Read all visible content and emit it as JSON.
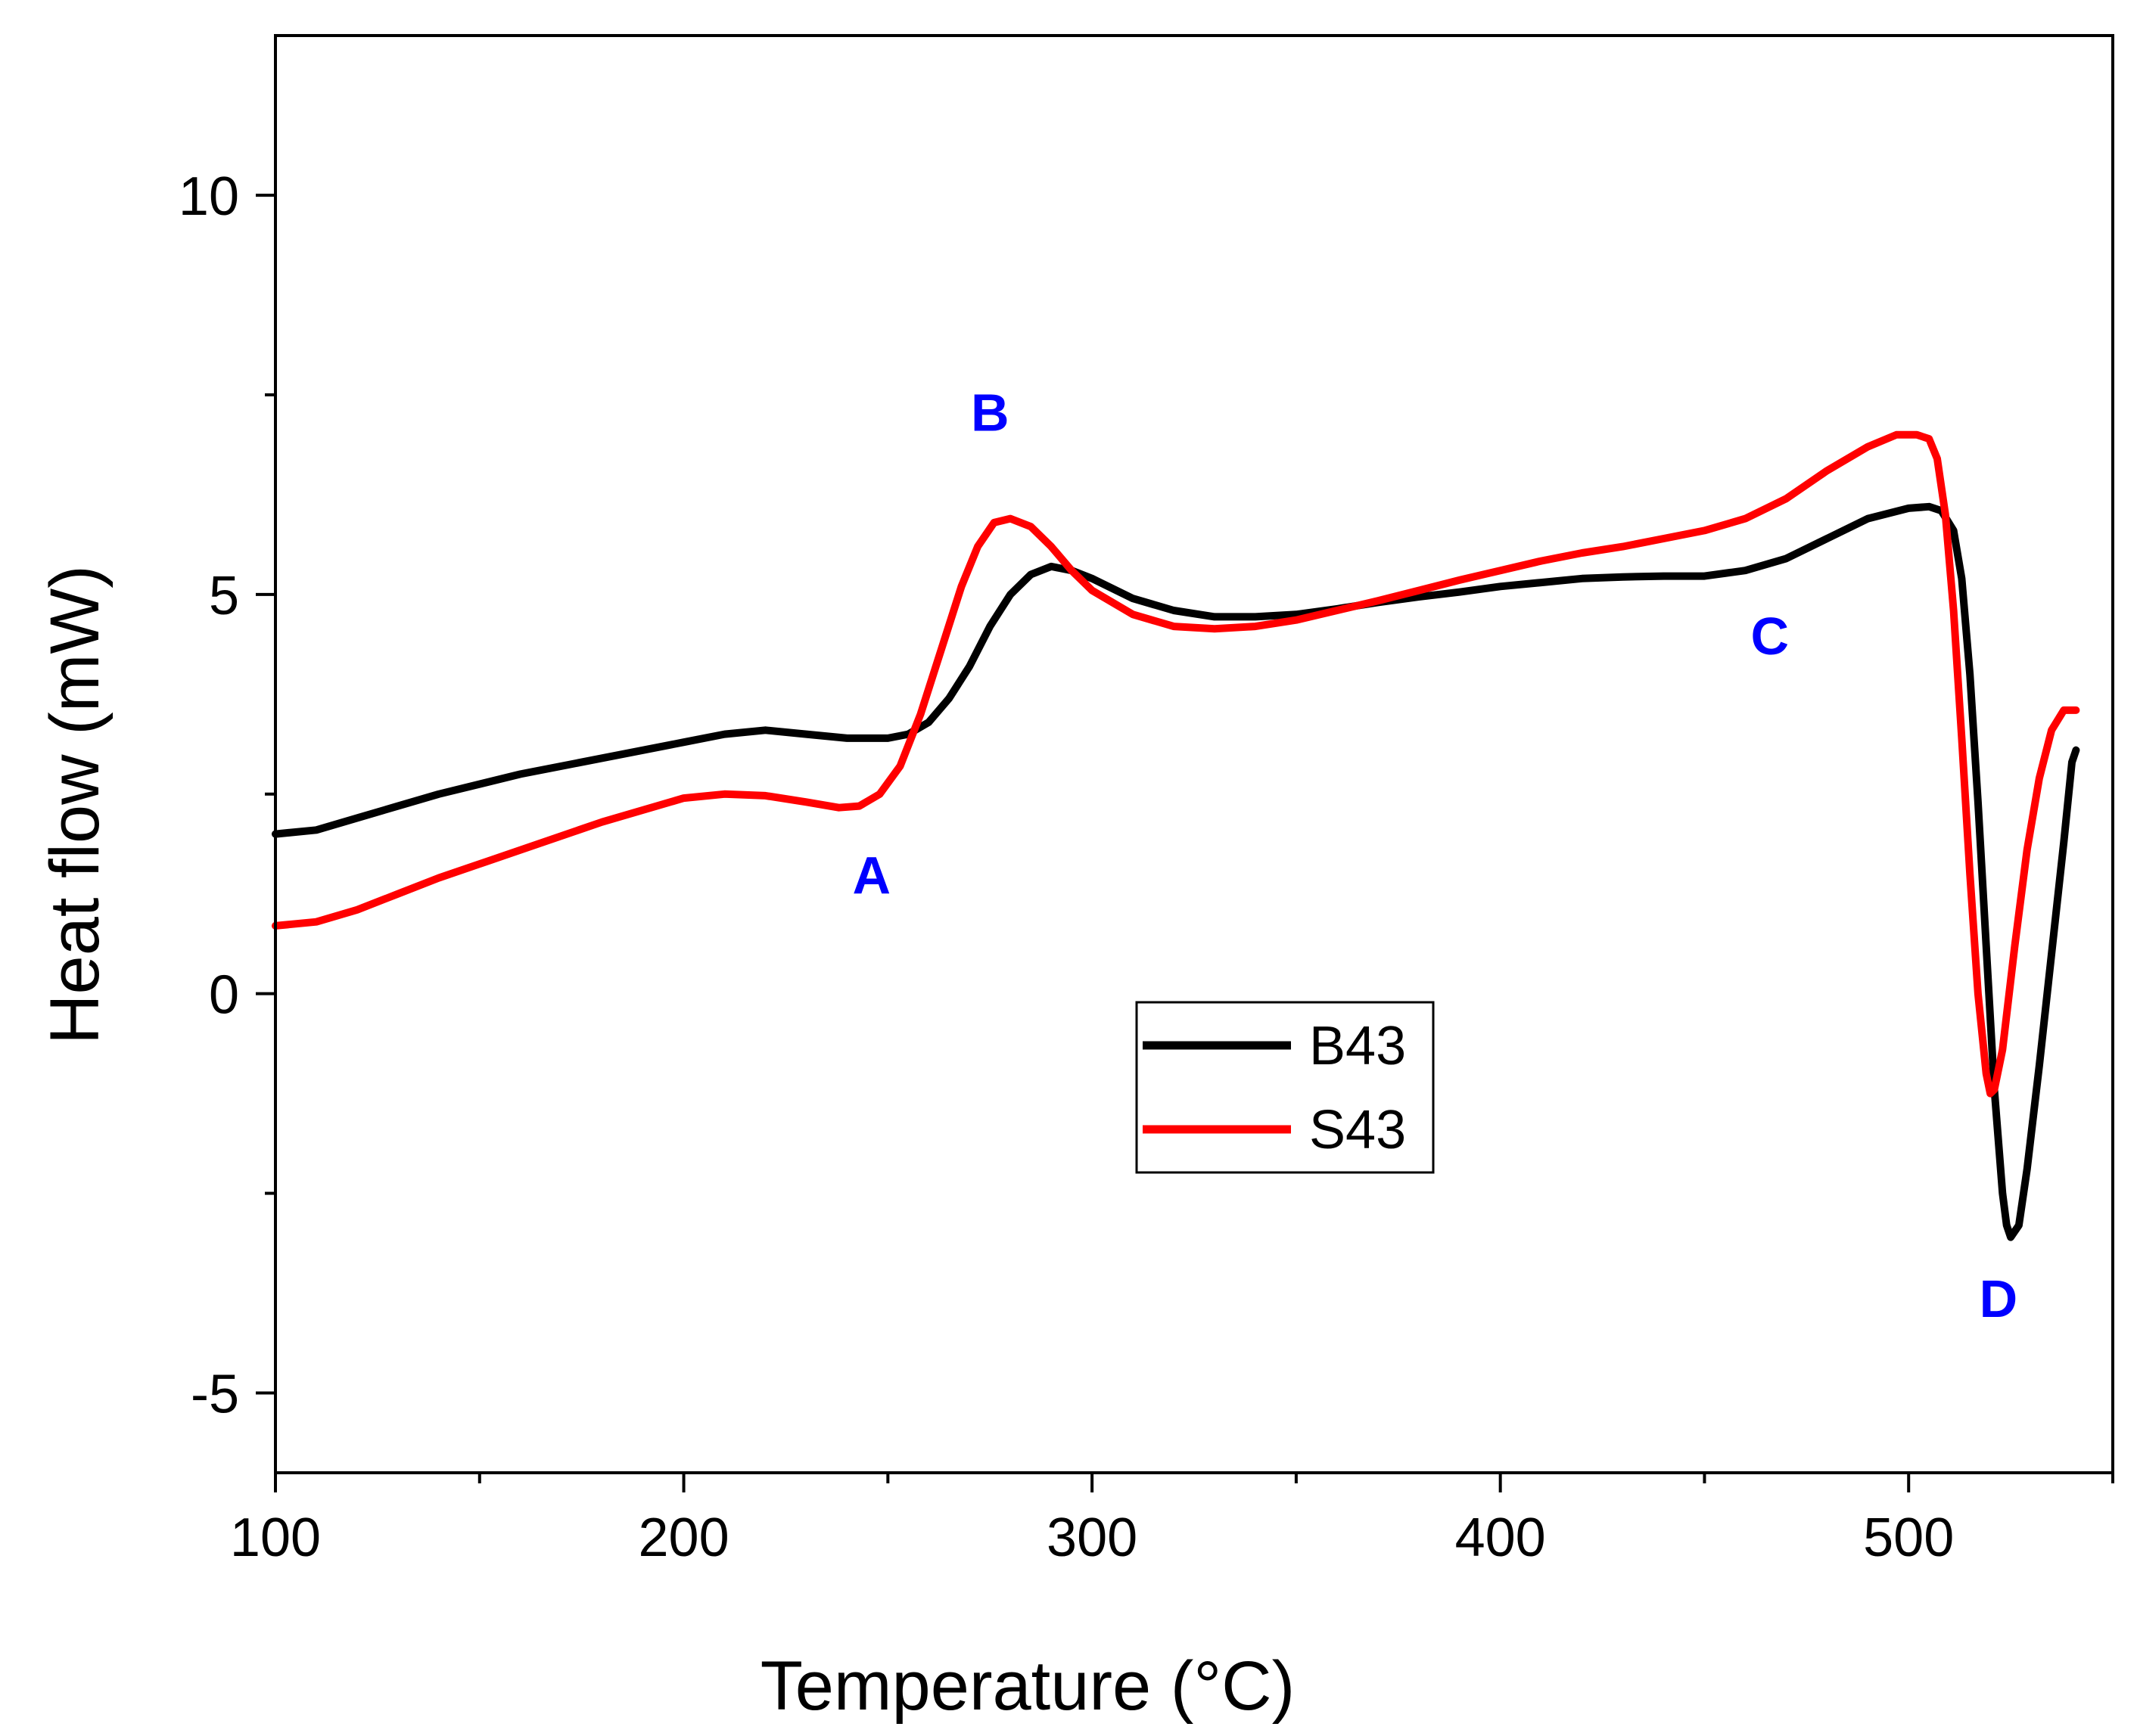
{
  "chart_data": {
    "type": "line",
    "title": "",
    "xlabel": "Temperature (",
    "xlabel_unit": "°C)",
    "ylabel": "Heat flow (mW)",
    "xlim": [
      100,
      550
    ],
    "ylim": [
      -6,
      12
    ],
    "x_ticks": [
      100,
      200,
      300,
      400,
      500
    ],
    "y_ticks": [
      -5,
      0,
      5,
      10
    ],
    "x_tick_labels": [
      "100",
      "200",
      "300",
      "400",
      "500"
    ],
    "y_tick_labels": [
      "-5",
      "0",
      "5",
      "10"
    ],
    "x_minor_ticks": [
      150,
      250,
      350,
      450,
      550
    ],
    "y_minor_ticks": [
      -2.5,
      2.5,
      7.5
    ],
    "grid": false,
    "legend_position": "center",
    "series": [
      {
        "name": "B43",
        "color": "#000000",
        "points": [
          [
            100,
            2.0
          ],
          [
            110,
            2.05
          ],
          [
            120,
            2.2
          ],
          [
            130,
            2.35
          ],
          [
            140,
            2.5
          ],
          [
            160,
            2.75
          ],
          [
            180,
            2.95
          ],
          [
            200,
            3.15
          ],
          [
            210,
            3.25
          ],
          [
            220,
            3.3
          ],
          [
            230,
            3.25
          ],
          [
            240,
            3.2
          ],
          [
            250,
            3.2
          ],
          [
            255,
            3.25
          ],
          [
            260,
            3.4
          ],
          [
            265,
            3.7
          ],
          [
            270,
            4.1
          ],
          [
            275,
            4.6
          ],
          [
            280,
            5.0
          ],
          [
            285,
            5.25
          ],
          [
            290,
            5.35
          ],
          [
            295,
            5.3
          ],
          [
            300,
            5.2
          ],
          [
            310,
            4.95
          ],
          [
            320,
            4.8
          ],
          [
            330,
            4.72
          ],
          [
            340,
            4.72
          ],
          [
            350,
            4.75
          ],
          [
            360,
            4.82
          ],
          [
            370,
            4.9
          ],
          [
            380,
            4.97
          ],
          [
            390,
            5.03
          ],
          [
            400,
            5.1
          ],
          [
            410,
            5.15
          ],
          [
            420,
            5.2
          ],
          [
            430,
            5.22
          ],
          [
            440,
            5.23
          ],
          [
            450,
            5.23
          ],
          [
            460,
            5.3
          ],
          [
            470,
            5.45
          ],
          [
            480,
            5.7
          ],
          [
            490,
            5.95
          ],
          [
            500,
            6.08
          ],
          [
            505,
            6.1
          ],
          [
            508,
            6.05
          ],
          [
            511,
            5.8
          ],
          [
            513,
            5.2
          ],
          [
            515,
            4.0
          ],
          [
            517,
            2.4
          ],
          [
            519,
            0.6
          ],
          [
            521,
            -1.2
          ],
          [
            523,
            -2.5
          ],
          [
            524,
            -2.9
          ],
          [
            525,
            -3.05
          ],
          [
            527,
            -2.9
          ],
          [
            529,
            -2.2
          ],
          [
            532,
            -0.9
          ],
          [
            535,
            0.5
          ],
          [
            538,
            1.9
          ],
          [
            540,
            2.9
          ],
          [
            541,
            3.05
          ]
        ]
      },
      {
        "name": "S43",
        "color": "#ff0000",
        "points": [
          [
            100,
            0.85
          ],
          [
            110,
            0.9
          ],
          [
            120,
            1.05
          ],
          [
            130,
            1.25
          ],
          [
            140,
            1.45
          ],
          [
            160,
            1.8
          ],
          [
            180,
            2.15
          ],
          [
            200,
            2.45
          ],
          [
            210,
            2.5
          ],
          [
            220,
            2.48
          ],
          [
            230,
            2.4
          ],
          [
            238,
            2.33
          ],
          [
            243,
            2.35
          ],
          [
            248,
            2.5
          ],
          [
            253,
            2.85
          ],
          [
            258,
            3.5
          ],
          [
            263,
            4.3
          ],
          [
            268,
            5.1
          ],
          [
            272,
            5.6
          ],
          [
            276,
            5.9
          ],
          [
            280,
            5.95
          ],
          [
            285,
            5.85
          ],
          [
            290,
            5.6
          ],
          [
            295,
            5.3
          ],
          [
            300,
            5.05
          ],
          [
            310,
            4.75
          ],
          [
            320,
            4.6
          ],
          [
            330,
            4.57
          ],
          [
            340,
            4.6
          ],
          [
            350,
            4.68
          ],
          [
            360,
            4.8
          ],
          [
            370,
            4.92
          ],
          [
            380,
            5.05
          ],
          [
            390,
            5.18
          ],
          [
            400,
            5.3
          ],
          [
            410,
            5.42
          ],
          [
            420,
            5.52
          ],
          [
            430,
            5.6
          ],
          [
            440,
            5.7
          ],
          [
            450,
            5.8
          ],
          [
            460,
            5.95
          ],
          [
            470,
            6.2
          ],
          [
            480,
            6.55
          ],
          [
            490,
            6.85
          ],
          [
            497,
            7.0
          ],
          [
            502,
            7.0
          ],
          [
            505,
            6.95
          ],
          [
            507,
            6.7
          ],
          [
            509,
            6.0
          ],
          [
            511,
            4.8
          ],
          [
            513,
            3.2
          ],
          [
            515,
            1.5
          ],
          [
            517,
            0.0
          ],
          [
            519,
            -1.0
          ],
          [
            520,
            -1.25
          ],
          [
            521,
            -1.2
          ],
          [
            523,
            -0.7
          ],
          [
            526,
            0.6
          ],
          [
            529,
            1.8
          ],
          [
            532,
            2.7
          ],
          [
            535,
            3.3
          ],
          [
            538,
            3.55
          ],
          [
            541,
            3.55
          ]
        ]
      }
    ],
    "annotations": [
      {
        "label": "A",
        "x": 246,
        "y": 1.25,
        "color": "#0000ff"
      },
      {
        "label": "B",
        "x": 275,
        "y": 7.05,
        "color": "#0000ff"
      },
      {
        "label": "C",
        "x": 466,
        "y": 4.25,
        "color": "#0000ff"
      },
      {
        "label": "D",
        "x": 522,
        "y": -4.05,
        "color": "#0000ff"
      }
    ]
  }
}
